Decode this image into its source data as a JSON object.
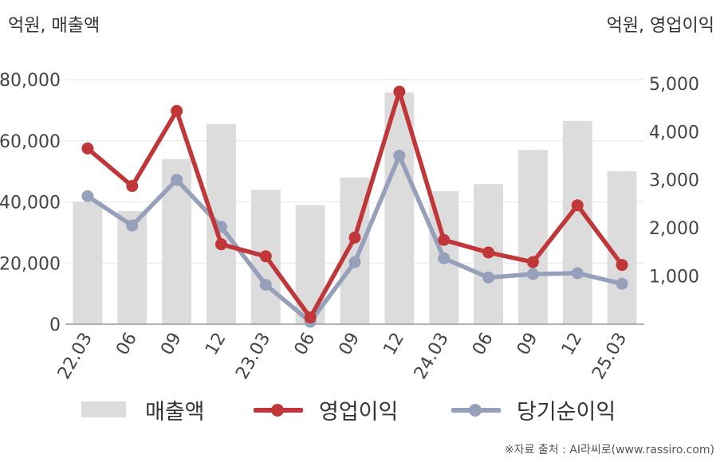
{
  "units": {
    "left": "억원, 매출액",
    "right": "억원, 영업이익"
  },
  "legend": {
    "revenue": "매출액",
    "operating": "영업이익",
    "net": "당기순이익"
  },
  "source": "※자료 출처 : AI라씨로(www.rassiro.com)",
  "colors": {
    "revenue": "#dcdcdc",
    "operating": "#c0373a",
    "net": "#96a0ba",
    "grid": "#e6e6e6",
    "axis": "#999999"
  },
  "chart_data": {
    "type": "bar+line",
    "categories": [
      "22.03",
      "06",
      "09",
      "12",
      "23.03",
      "06",
      "09",
      "12",
      "24.03",
      "06",
      "09",
      "12",
      "25.03"
    ],
    "left_axis": {
      "ticks": [
        "0",
        "20,000",
        "40,000",
        "60,000",
        "80,000"
      ],
      "ylim": [
        0,
        80000
      ]
    },
    "right_axis": {
      "ticks": [
        "1,000",
        "2,000",
        "3,000",
        "4,000",
        "5,000"
      ],
      "ylim": [
        0,
        5080
      ]
    },
    "series": [
      {
        "name": "매출액",
        "type": "bar",
        "axis": "left",
        "values": [
          40000,
          37000,
          54000,
          65500,
          44000,
          39000,
          48000,
          75800,
          43500,
          45800,
          57000,
          66500,
          50000
        ]
      },
      {
        "name": "영업이익",
        "type": "line",
        "axis": "right",
        "values": [
          3650,
          2870,
          4430,
          1660,
          1410,
          140,
          1800,
          4830,
          1750,
          1490,
          1290,
          2470,
          1230
        ]
      },
      {
        "name": "당기순이익",
        "type": "line",
        "axis": "right",
        "values": [
          2660,
          2050,
          3000,
          2020,
          820,
          50,
          1290,
          3500,
          1370,
          970,
          1040,
          1060,
          840
        ]
      }
    ],
    "grid": true,
    "legend_position": "bottom"
  }
}
